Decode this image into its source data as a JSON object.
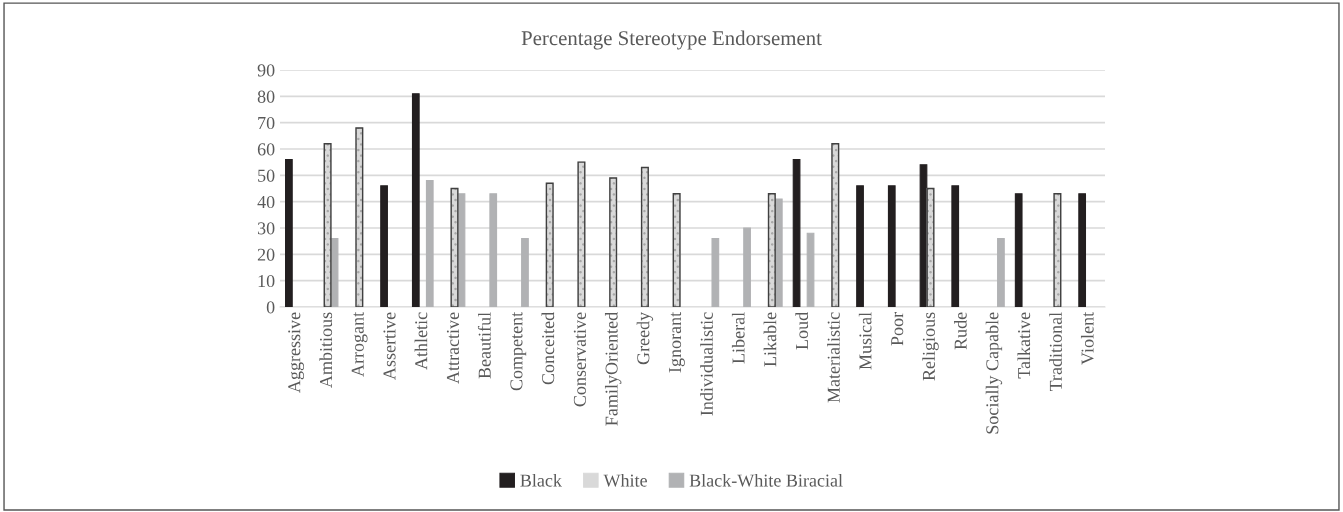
{
  "chart_data": {
    "type": "bar",
    "title": "Percentage Stereotype Endorsement",
    "categories": [
      "Aggressive",
      "Ambitious",
      "Arrogant",
      "Assertive",
      "Athletic",
      "Attractive",
      "Beautiful",
      "Competent",
      "Conceited",
      "Conservative",
      "FamilyOriented",
      "Greedy",
      "Ignorant",
      "Individualistic",
      "Liberal",
      "Likable",
      "Loud",
      "Materialistic",
      "Musical",
      "Poor",
      "Religious",
      "Rude",
      "Socially Capable",
      "Talkative",
      "Traditional",
      "Violent"
    ],
    "series": [
      {
        "name": "Black",
        "color": "#231f20",
        "values": [
          56,
          null,
          null,
          46,
          81,
          null,
          null,
          null,
          null,
          null,
          null,
          null,
          null,
          null,
          null,
          null,
          56,
          null,
          46,
          46,
          54,
          46,
          null,
          43,
          null,
          43
        ]
      },
      {
        "name": "White",
        "color": "#d9d9d9",
        "values": [
          null,
          62,
          68,
          null,
          null,
          45,
          null,
          null,
          47,
          55,
          49,
          53,
          43,
          null,
          null,
          43,
          null,
          62,
          null,
          null,
          45,
          null,
          null,
          null,
          43,
          null
        ]
      },
      {
        "name": "Black-White Biracial",
        "color": "#b1b2b4",
        "values": [
          null,
          26,
          null,
          null,
          48,
          43,
          43,
          26,
          null,
          null,
          null,
          null,
          null,
          26,
          30,
          41,
          28,
          null,
          null,
          null,
          null,
          null,
          26,
          null,
          null,
          null
        ]
      }
    ],
    "ylim": [
      0,
      90
    ],
    "yticks": [
      0,
      10,
      20,
      30,
      40,
      50,
      60,
      70,
      80,
      90
    ],
    "grid": "y",
    "legend": "bottom"
  }
}
